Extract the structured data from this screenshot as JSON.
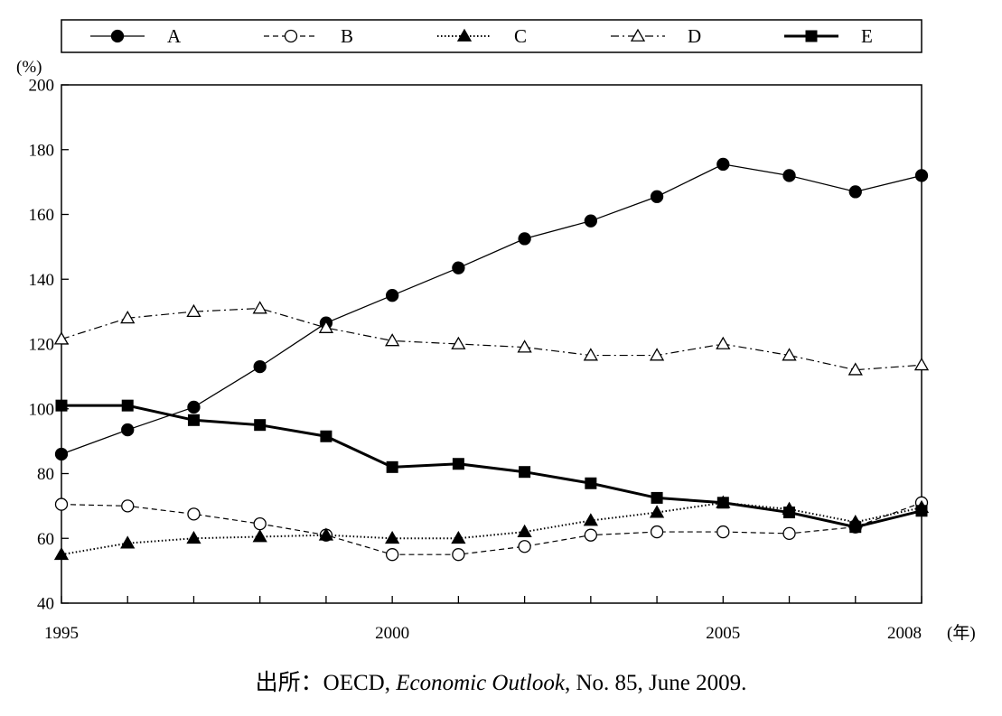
{
  "chart_data": {
    "type": "line",
    "x": [
      1995,
      1996,
      1997,
      1998,
      1999,
      2000,
      2001,
      2002,
      2003,
      2004,
      2005,
      2006,
      2007,
      2008
    ],
    "x_tick_labels": [
      "1995",
      "2000",
      "2005",
      "2008"
    ],
    "x_unit": "(年)",
    "y_unit": "(%)",
    "ylim": [
      40,
      200
    ],
    "y_ticks": [
      40,
      60,
      80,
      100,
      120,
      140,
      160,
      180,
      200
    ],
    "xlim": [
      1995,
      2008
    ],
    "grid": false,
    "legend_position": "top",
    "series": [
      {
        "name": "A",
        "marker": "circle-filled",
        "line": "solid-thin",
        "values": [
          86,
          93.5,
          100.5,
          113,
          126.5,
          135,
          143.5,
          152.5,
          158,
          165.5,
          175.5,
          172,
          167,
          172
        ]
      },
      {
        "name": "B",
        "marker": "circle-open",
        "line": "dashed",
        "values": [
          70.5,
          70,
          67.5,
          64.5,
          61,
          55,
          55,
          57.5,
          61,
          62,
          62,
          61.5,
          63.5,
          71
        ]
      },
      {
        "name": "C",
        "marker": "triangle-filled",
        "line": "dotted",
        "values": [
          55,
          58.5,
          60,
          60.5,
          61,
          60,
          60,
          62,
          65.5,
          68,
          71,
          69,
          65,
          69.5
        ]
      },
      {
        "name": "D",
        "marker": "triangle-open",
        "line": "dash-dot",
        "values": [
          121.5,
          128,
          130,
          131,
          125,
          121,
          120,
          119,
          116.5,
          116.5,
          120,
          116.5,
          112,
          113.5
        ]
      },
      {
        "name": "E",
        "marker": "square-filled",
        "line": "solid-thick",
        "values": [
          101,
          101,
          96.5,
          95,
          91.5,
          82,
          83,
          80.5,
          77,
          72.5,
          71,
          68,
          63.5,
          68.5
        ]
      }
    ]
  },
  "source": {
    "prefix": "出所：OECD, ",
    "publication": "Economic Outlook",
    "suffix": ", No. 85, June 2009."
  }
}
